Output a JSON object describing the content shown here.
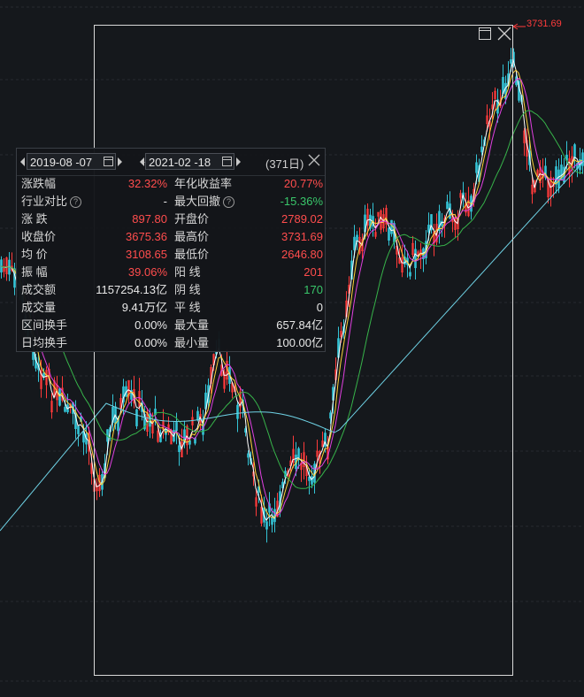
{
  "chart": {
    "max_price_label": "3731.69",
    "colors": {
      "background": "#15181c",
      "up_candle": "#ff3b3b",
      "down_candle": "#34c4d6",
      "ma5": "#ffffff",
      "ma10": "#ffd23a",
      "ma20": "#e040e0",
      "ma60": "#37b34a",
      "ma120": "#6fd3e6",
      "selection_box": "#d8d8d8"
    }
  },
  "selection": {
    "maximize_icon": "window-maximize-icon",
    "close_icon": "close-icon"
  },
  "panel": {
    "start_date": "2019-08 -07",
    "end_date": "2021-02 -18",
    "separator": "-",
    "days": "(371日)",
    "rows": [
      {
        "l1": "涨跌幅",
        "v1": "32.32%",
        "c1": "red",
        "l2": "年化收益率",
        "v2": "20.77%",
        "c2": "red"
      },
      {
        "l1": "行业对比",
        "v1": "-",
        "c1": "white",
        "l2": "最大回撤",
        "v2": "-15.36%",
        "c2": "green"
      },
      {
        "l1": "涨  跌",
        "v1": "897.80",
        "c1": "red",
        "l2": "开盘价",
        "v2": "2789.02",
        "c2": "red"
      },
      {
        "l1": "收盘价",
        "v1": "3675.36",
        "c1": "red",
        "l2": "最高价",
        "v2": "3731.69",
        "c2": "red"
      },
      {
        "l1": "均  价",
        "v1": "3108.65",
        "c1": "red",
        "l2": "最低价",
        "v2": "2646.80",
        "c2": "red"
      },
      {
        "l1": "振  幅",
        "v1": "39.06%",
        "c1": "red",
        "l2": "阳  线",
        "v2": "201",
        "c2": "red"
      },
      {
        "l1": "成交额",
        "v1": "1157254.13亿",
        "c1": "white",
        "l2": "阴  线",
        "v2": "170",
        "c2": "green"
      },
      {
        "l1": "成交量",
        "v1": "9.41万亿",
        "c1": "white",
        "l2": "平  线",
        "v2": "0",
        "c2": "white"
      },
      {
        "l1": "区间换手",
        "v1": "0.00%",
        "c1": "white",
        "l2": "最大量",
        "v2": "657.84亿",
        "c2": "white"
      },
      {
        "l1": "日均换手",
        "v1": "0.00%",
        "c1": "white",
        "l2": "最小量",
        "v2": "100.00亿",
        "c2": "white"
      }
    ]
  }
}
